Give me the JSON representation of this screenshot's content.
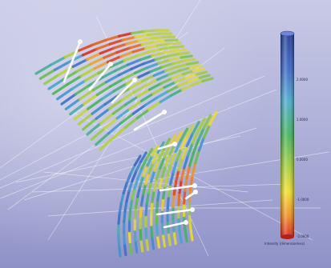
{
  "image": {
    "subject": "3D scientific visualization of two curved surfaces covered with colored streak bands, crossed by thin white rays and arrows, with a vertical color scale on the right"
  },
  "colorbar": {
    "tick_labels": [
      "2.0000",
      "1.0000",
      "0.0000",
      "-1.0000",
      "-2.0000"
    ],
    "caption": "Intensity (dimensionless)"
  },
  "colors": {
    "background_top": "#c5c6e3",
    "background_bottom": "#9295c8",
    "scale_top": "#1e3d99",
    "scale_mid": "#3fb85c",
    "scale_low": "#f2dd2e",
    "scale_bottom": "#d8261c"
  }
}
